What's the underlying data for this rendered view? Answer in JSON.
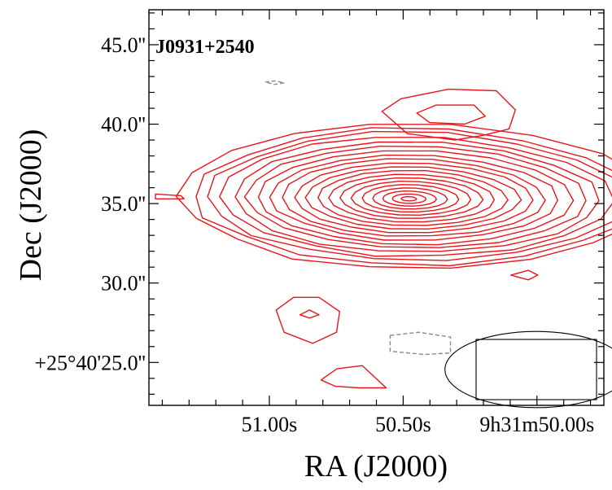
{
  "chart_data": {
    "type": "contour",
    "title": "J0931+2540",
    "xlabel": "RA (J2000)",
    "ylabel": "Dec (J2000)",
    "x_ticks": [
      {
        "label": "51.00s",
        "ra_sec": 51.0
      },
      {
        "label": "50.50s",
        "ra_sec": 50.5
      },
      {
        "label": "9h31m50.00s",
        "ra_sec": 50.0
      }
    ],
    "y_ticks": [
      {
        "label": "45.0''",
        "dec_arcsec": 45.0
      },
      {
        "label": "40.0''",
        "dec_arcsec": 40.0
      },
      {
        "label": "35.0''",
        "dec_arcsec": 35.0
      },
      {
        "label": "30.0''",
        "dec_arcsec": 30.0
      },
      {
        "label": "+25°40'25.0''",
        "dec_arcsec": 25.0
      }
    ],
    "xlim_ra_sec": [
      51.45,
      49.75
    ],
    "ylim_dec_arcsec": [
      22.3,
      47.2
    ],
    "positive_contour_color": "#e8151b",
    "negative_contour_color": "#888888",
    "source_peak": {
      "ra_sec": 50.48,
      "dec_arcsec": 35.3
    },
    "source_extent_arcsec": {
      "east": 11.5,
      "west": 12.5,
      "north": 4.2,
      "south": 4.0
    },
    "contour_level_count": 20,
    "secondary_features": [
      {
        "ra_sec": 50.33,
        "dec_arcsec": 40.6,
        "kind": "positive"
      },
      {
        "ra_sec": 50.85,
        "dec_arcsec": 28.0,
        "kind": "positive"
      },
      {
        "ra_sec": 50.7,
        "dec_arcsec": 23.9,
        "kind": "positive"
      },
      {
        "ra_sec": 51.39,
        "dec_arcsec": 35.4,
        "kind": "positive"
      },
      {
        "ra_sec": 50.05,
        "dec_arcsec": 30.5,
        "kind": "positive"
      },
      {
        "ra_sec": 50.43,
        "dec_arcsec": 26.2,
        "kind": "negative"
      },
      {
        "ra_sec": 50.98,
        "dec_arcsec": 42.6,
        "kind": "negative"
      }
    ],
    "beam": {
      "major_arcsec": 4.6,
      "minor_arcsec": 2.0,
      "position_angle_deg": 90,
      "location": "bottom-right"
    },
    "grid": false
  }
}
